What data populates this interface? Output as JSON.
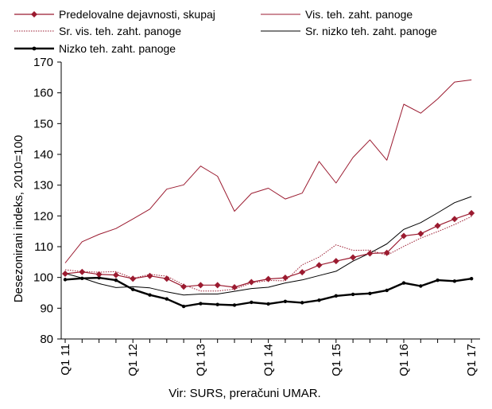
{
  "chart_data": {
    "type": "line",
    "ylabel": "Desezonirani indeks, 2010=100",
    "source": "Vir: SURS, preračuni UMAR.",
    "ylim": [
      80,
      170
    ],
    "yticks": [
      80,
      90,
      100,
      110,
      120,
      130,
      140,
      150,
      160,
      170
    ],
    "grid": false,
    "legend_position": "top",
    "x_tick_labels": [
      {
        "index": 0,
        "label": "Q1 11"
      },
      {
        "index": 4,
        "label": "Q1 12"
      },
      {
        "index": 8,
        "label": "Q1 13"
      },
      {
        "index": 12,
        "label": "Q1 14"
      },
      {
        "index": 16,
        "label": "Q1 15"
      },
      {
        "index": 20,
        "label": "Q1 16"
      },
      {
        "index": 24,
        "label": "Q1 17"
      }
    ],
    "series": [
      {
        "name": "Predelovalne dejavnosti, skupaj",
        "color": "#9b1b30",
        "style": "solid-diamond",
        "values": [
          101.2,
          101.8,
          101.0,
          100.8,
          99.6,
          100.5,
          99.6,
          97.0,
          97.5,
          97.5,
          96.8,
          98.5,
          99.5,
          99.9,
          101.7,
          104.0,
          105.3,
          106.5,
          107.8,
          108.0,
          113.5,
          114.2,
          116.8,
          119.0,
          120.9
        ]
      },
      {
        "name": "Vis. teh. zaht. panoge",
        "color": "#9b1b30",
        "style": "thin",
        "values": [
          104.7,
          111.6,
          114.0,
          115.9,
          119.0,
          122.2,
          128.7,
          130.1,
          136.2,
          132.9,
          121.5,
          127.3,
          129.0,
          125.5,
          127.4,
          137.7,
          130.7,
          139.0,
          144.7,
          138.1,
          156.3,
          153.4,
          158.0,
          163.5,
          164.2
        ]
      },
      {
        "name": "Sr. vis. teh. zaht. panoge",
        "color": "#9b1b30",
        "style": "dotted",
        "values": [
          102.5,
          101.9,
          101.7,
          101.9,
          99.7,
          101.0,
          100.4,
          97.6,
          95.6,
          95.6,
          96.2,
          98.2,
          99.0,
          98.9,
          104.1,
          106.6,
          110.6,
          108.8,
          108.9,
          107.2,
          110.1,
          112.8,
          114.9,
          117.2,
          119.8
        ]
      },
      {
        "name": "Sr. nizko teh. zaht. panoge",
        "color": "#000000",
        "style": "thin",
        "values": [
          101.3,
          99.8,
          98.0,
          96.7,
          97.0,
          96.6,
          95.3,
          94.3,
          94.6,
          94.6,
          95.5,
          96.4,
          96.8,
          98.2,
          99.2,
          100.6,
          102.0,
          105.3,
          107.9,
          110.9,
          115.6,
          117.8,
          121.0,
          124.3,
          126.3
        ]
      },
      {
        "name": "Nizko teh. zaht. panoge",
        "color": "#000000",
        "style": "thick-dot",
        "values": [
          99.3,
          99.7,
          99.9,
          99.1,
          96.1,
          94.3,
          93.0,
          90.6,
          91.5,
          91.2,
          91.0,
          91.9,
          91.4,
          92.2,
          91.8,
          92.6,
          94.0,
          94.5,
          94.8,
          95.8,
          98.2,
          97.2,
          99.1,
          98.8,
          99.6
        ]
      }
    ]
  }
}
